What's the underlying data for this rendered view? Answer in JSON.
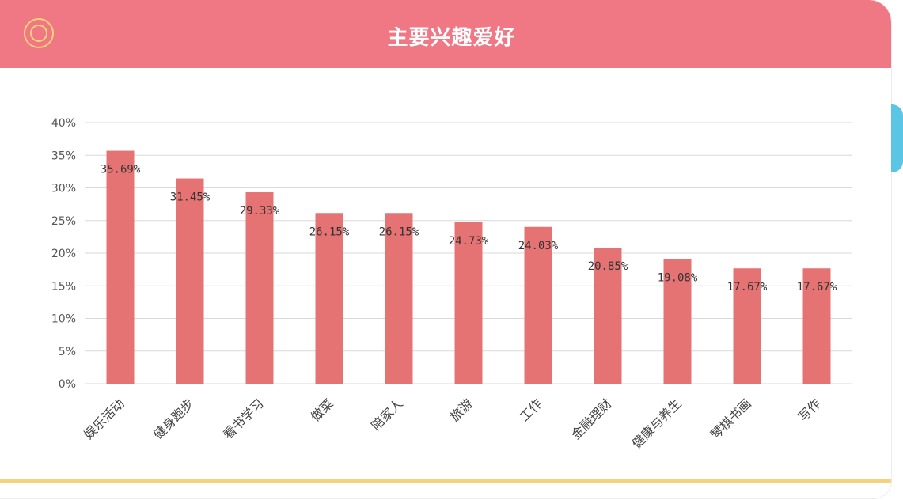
{
  "header": {
    "title": "主要兴趣爱好",
    "logo_icon": "concentric-circle-icon",
    "background_color": "#ef7884",
    "accent_tab_color": "#5bc5e6",
    "footer_line_color": "#f5d27d"
  },
  "chart_data": {
    "type": "bar",
    "title": "主要兴趣爱好",
    "xlabel": "",
    "ylabel": "",
    "categories": [
      "娱乐活动",
      "健身跑步",
      "看书学习",
      "做菜",
      "陪家人",
      "旅游",
      "工作",
      "金融理财",
      "健康与养生",
      "琴棋书画",
      "写作"
    ],
    "values": [
      35.69,
      31.45,
      29.33,
      26.15,
      26.15,
      24.73,
      24.03,
      20.85,
      19.08,
      17.67,
      17.67
    ],
    "value_labels": [
      "35.69%",
      "31.45%",
      "29.33%",
      "26.15%",
      "26.15%",
      "24.73%",
      "24.03%",
      "20.85%",
      "19.08%",
      "17.67%",
      "17.67%"
    ],
    "y_ticks": [
      "0%",
      "5%",
      "10%",
      "15%",
      "20%",
      "25%",
      "30%",
      "35%",
      "40%"
    ],
    "ylim": [
      0,
      40
    ],
    "grid": true,
    "bar_color": "#e57373",
    "legend": "none"
  }
}
